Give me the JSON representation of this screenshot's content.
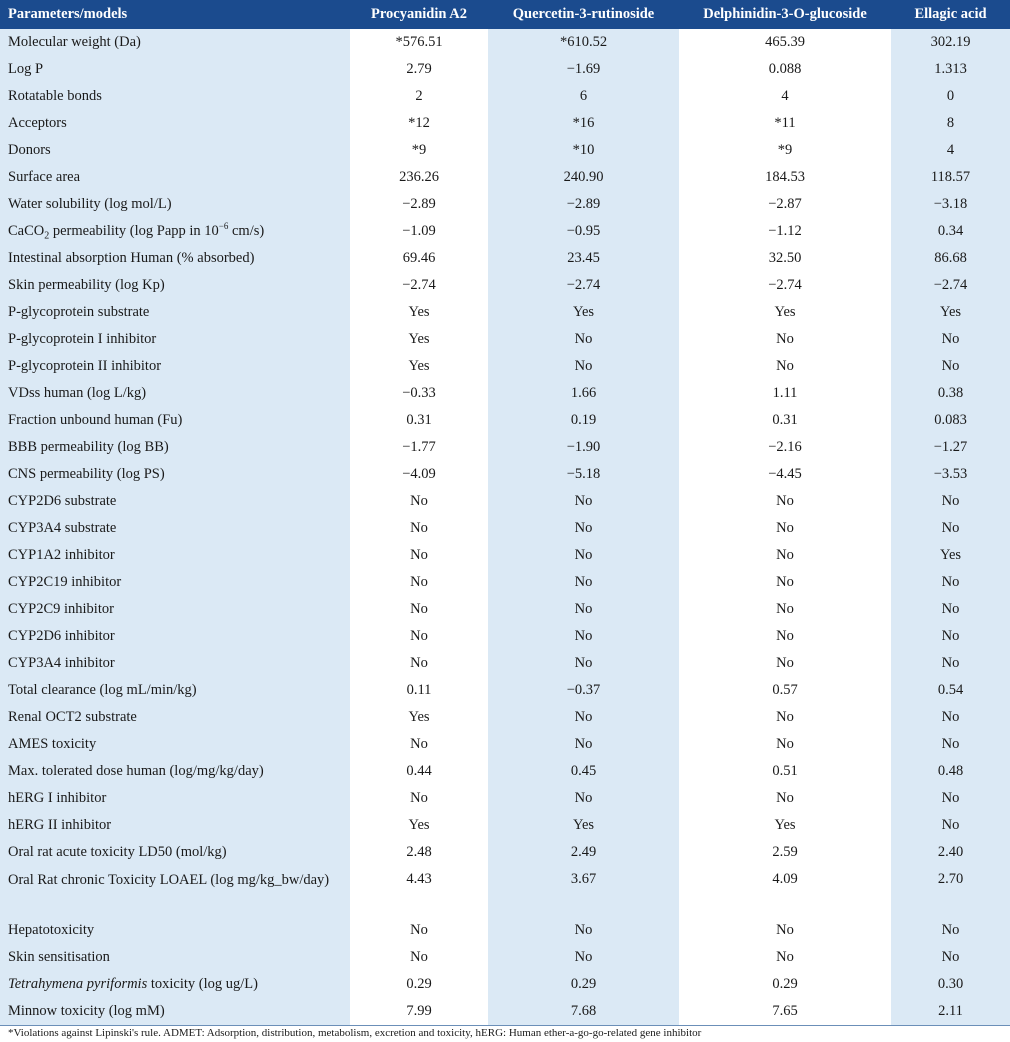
{
  "table": {
    "headers": [
      "Parameters/models",
      "Procyanidin A2",
      "Quercetin-3-rutinoside",
      "Delphinidin-3-O-glucoside",
      "Ellagic acid"
    ],
    "rows": [
      {
        "param": "Molecular weight (Da)",
        "v": [
          "*576.51",
          "*610.52",
          "465.39",
          "302.19"
        ]
      },
      {
        "param": "Log P",
        "v": [
          "2.79",
          "−1.69",
          "0.088",
          "1.313"
        ]
      },
      {
        "param": "Rotatable bonds",
        "v": [
          "2",
          "6",
          "4",
          "0"
        ]
      },
      {
        "param": "Acceptors",
        "v": [
          "*12",
          "*16",
          "*11",
          "8"
        ]
      },
      {
        "param": "Donors",
        "v": [
          "*9",
          "*10",
          "*9",
          "4"
        ]
      },
      {
        "param": "Surface area",
        "v": [
          "236.26",
          "240.90",
          "184.53",
          "118.57"
        ]
      },
      {
        "param": "Water solubility (log mol/L)",
        "v": [
          "−2.89",
          "−2.89",
          "−2.87",
          "−3.18"
        ]
      },
      {
        "param_parts": [
          "CaCO",
          "2",
          " permeability (log Papp in 10",
          "−6",
          " cm/s)"
        ],
        "v": [
          "−1.09",
          "−0.95",
          "−1.12",
          "0.34"
        ]
      },
      {
        "param": "Intestinal absorption Human (% absorbed)",
        "v": [
          "69.46",
          "23.45",
          "32.50",
          "86.68"
        ]
      },
      {
        "param": "Skin permeability (log Kp)",
        "v": [
          "−2.74",
          "−2.74",
          "−2.74",
          "−2.74"
        ]
      },
      {
        "param": "P-glycoprotein substrate",
        "v": [
          "Yes",
          "Yes",
          "Yes",
          "Yes"
        ]
      },
      {
        "param": "P-glycoprotein I inhibitor",
        "v": [
          "Yes",
          "No",
          "No",
          "No"
        ]
      },
      {
        "param": "P-glycoprotein II inhibitor",
        "v": [
          "Yes",
          "No",
          "No",
          "No"
        ]
      },
      {
        "param": "VDss human (log L/kg)",
        "v": [
          "−0.33",
          "1.66",
          "1.11",
          "0.38"
        ]
      },
      {
        "param": "Fraction unbound human (Fu)",
        "v": [
          "0.31",
          "0.19",
          "0.31",
          "0.083"
        ]
      },
      {
        "param": "BBB permeability (log BB)",
        "v": [
          "−1.77",
          "−1.90",
          "−2.16",
          "−1.27"
        ]
      },
      {
        "param": "CNS permeability (log PS)",
        "v": [
          "−4.09",
          "−5.18",
          "−4.45",
          "−3.53"
        ]
      },
      {
        "param": "CYP2D6 substrate",
        "v": [
          "No",
          "No",
          "No",
          "No"
        ]
      },
      {
        "param": "CYP3A4 substrate",
        "v": [
          "No",
          "No",
          "No",
          "No"
        ]
      },
      {
        "param": "CYP1A2 inhibitor",
        "v": [
          "No",
          "No",
          "No",
          "Yes"
        ]
      },
      {
        "param": "CYP2C19 inhibitor",
        "v": [
          "No",
          "No",
          "No",
          "No"
        ]
      },
      {
        "param": "CYP2C9 inhibitor",
        "v": [
          "No",
          "No",
          "No",
          "No"
        ]
      },
      {
        "param": "CYP2D6 inhibitor",
        "v": [
          "No",
          "No",
          "No",
          "No"
        ]
      },
      {
        "param": "CYP3A4 inhibitor",
        "v": [
          "No",
          "No",
          "No",
          "No"
        ]
      },
      {
        "param": "Total clearance (log mL/min/kg)",
        "v": [
          "0.11",
          "−0.37",
          "0.57",
          "0.54"
        ]
      },
      {
        "param": "Renal OCT2 substrate",
        "v": [
          "Yes",
          "No",
          "No",
          "No"
        ]
      },
      {
        "param": "AMES toxicity",
        "v": [
          "No",
          "No",
          "No",
          "No"
        ]
      },
      {
        "param": "Max. tolerated dose human (log/mg/kg/day)",
        "v": [
          "0.44",
          "0.45",
          "0.51",
          "0.48"
        ]
      },
      {
        "param": "hERG I inhibitor",
        "v": [
          "No",
          "No",
          "No",
          "No"
        ]
      },
      {
        "param": "hERG II inhibitor",
        "v": [
          "Yes",
          "Yes",
          "Yes",
          "No"
        ]
      },
      {
        "param": "Oral rat acute toxicity LD50 (mol/kg)",
        "v": [
          "2.48",
          "2.49",
          "2.59",
          "2.40"
        ]
      },
      {
        "param": "Oral Rat chronic Toxicity LOAEL (log mg/kg_bw/day)",
        "v": [
          "4.43",
          "3.67",
          "4.09",
          "2.70"
        ],
        "tall": true
      },
      {
        "param": "Hepatotoxicity",
        "v": [
          "No",
          "No",
          "No",
          "No"
        ]
      },
      {
        "param": "Skin sensitisation",
        "v": [
          "No",
          "No",
          "No",
          "No"
        ]
      },
      {
        "param_italic": "Tetrahymena pyriformis",
        "param_rest": " toxicity (log ug/L)",
        "v": [
          "0.29",
          "0.29",
          "0.29",
          "0.30"
        ]
      },
      {
        "param": "Minnow toxicity (log mM)",
        "v": [
          "7.99",
          "7.68",
          "7.65",
          "2.11"
        ]
      }
    ]
  },
  "footnote": "*Violations against Lipinski's rule. ADMET: Adsorption, distribution, metabolism, excretion and toxicity, hERG: Human ether-a-go-go-related gene inhibitor"
}
